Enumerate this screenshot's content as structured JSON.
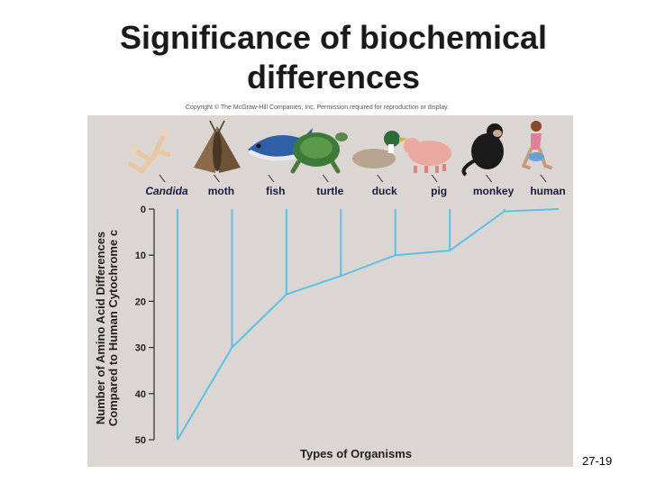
{
  "slide": {
    "title_line1": "Significance of biochemical",
    "title_line2": "differences",
    "copyright": "Copyright © The McGraw-Hill Companies, Inc. Permission required for reproduction or display.",
    "slide_number": "27-19"
  },
  "chart_data": {
    "type": "line",
    "categories": [
      "Candida",
      "moth",
      "fish",
      "turtle",
      "duck",
      "pig",
      "monkey",
      "human"
    ],
    "values": [
      50,
      30,
      18.5,
      14.5,
      10,
      9,
      0.5,
      0
    ],
    "xlabel": "Types of Organisms",
    "ylabel_line1": "Number of Amino Acid Differences",
    "ylabel_line2": "Compared to Human Cytochrome c",
    "ylim": [
      0,
      50
    ],
    "y_inverted": true,
    "yticks": [
      0,
      10,
      20,
      30,
      40,
      50
    ],
    "grid": false,
    "line_color": "#5bc0e8",
    "panel_color": "#dcd6d3"
  }
}
